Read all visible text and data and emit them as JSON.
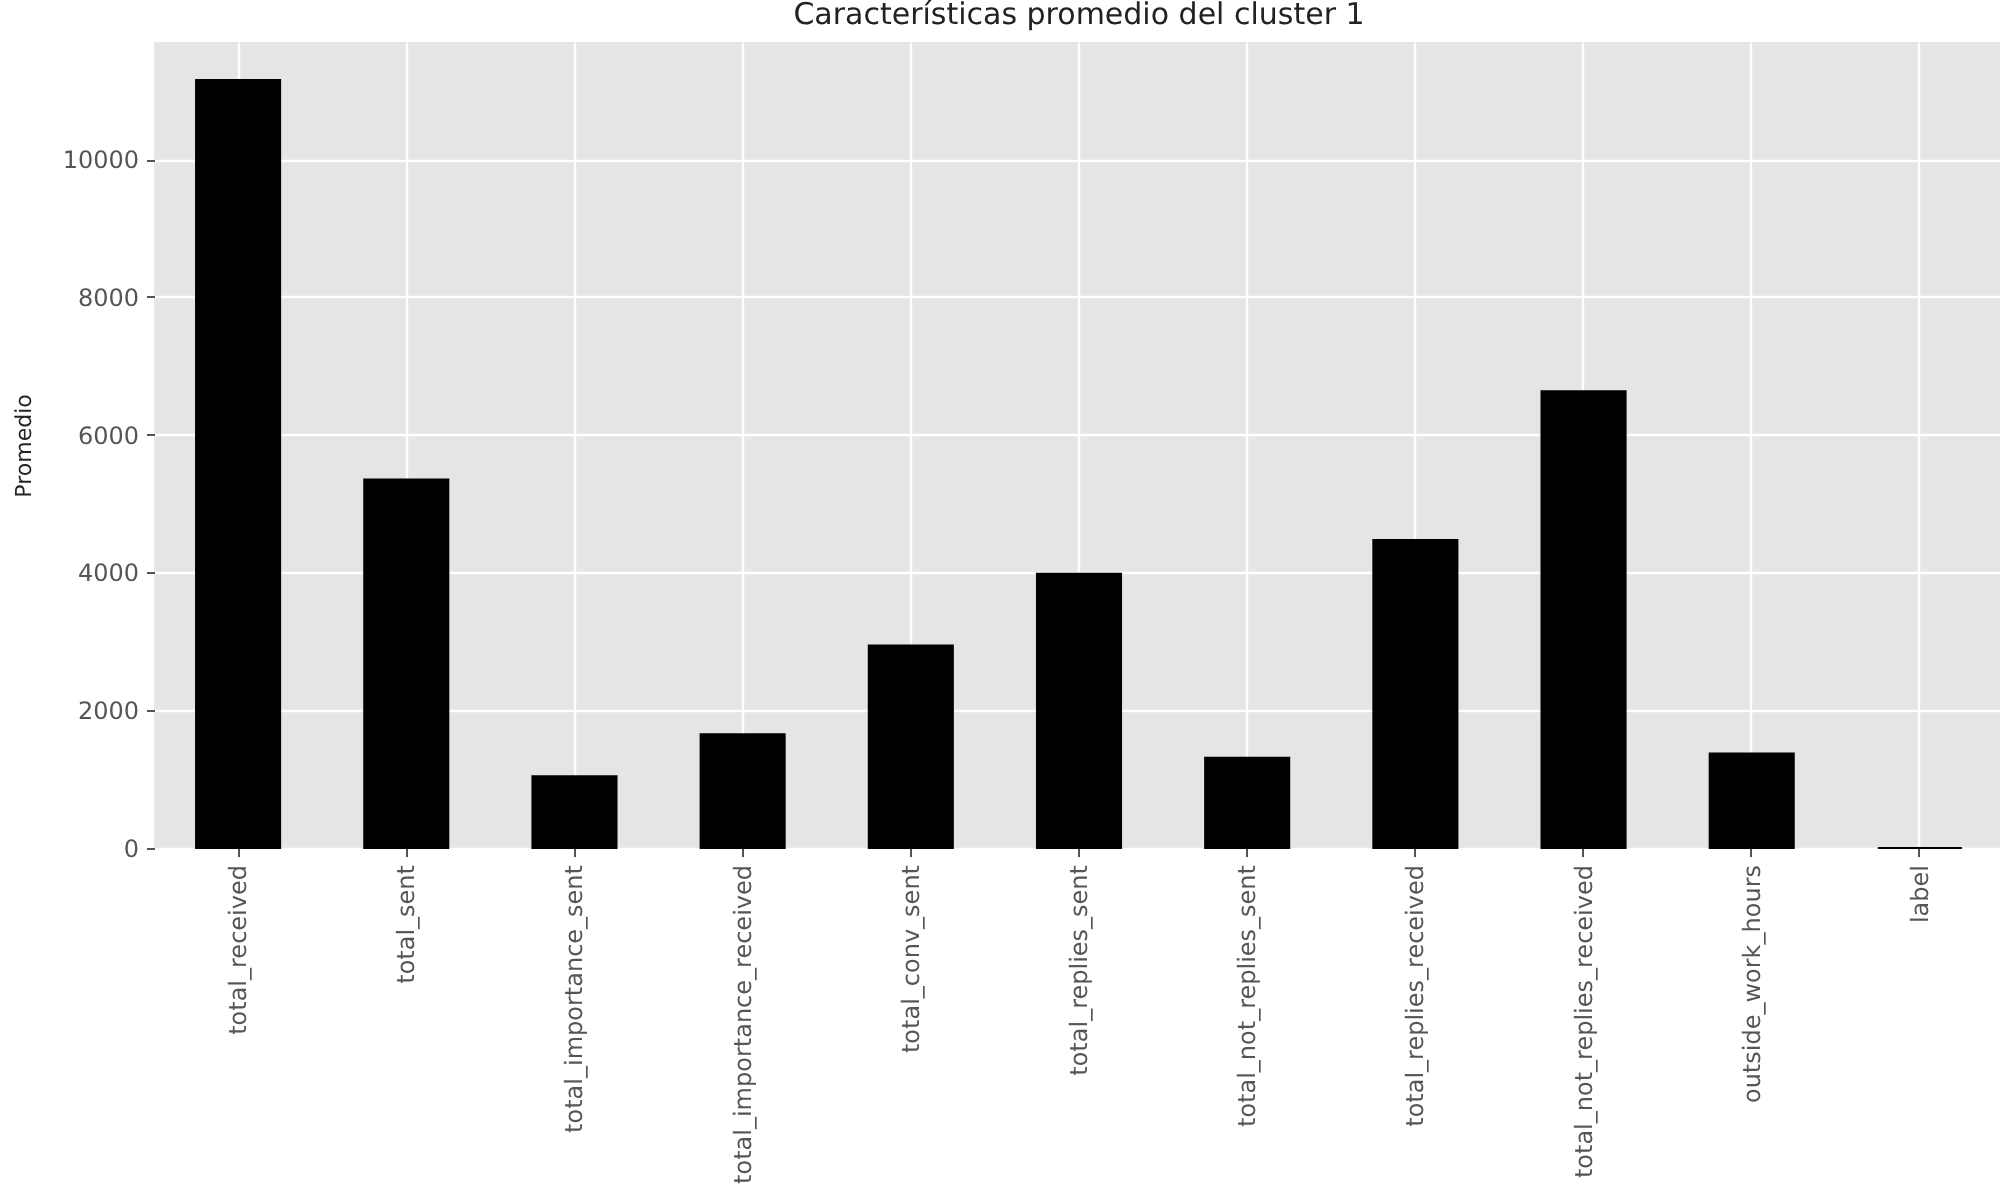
{
  "chart_data": {
    "type": "bar",
    "title": "Características promedio del cluster 1",
    "ylabel": "Promedio",
    "categories": [
      "total_received",
      "total_sent",
      "total_importance_sent",
      "total_importance_received",
      "total_conv_sent",
      "total_replies_sent",
      "total_not_replies_sent",
      "total_replies_received",
      "total_not_replies_received",
      "outside_work_hours",
      "label"
    ],
    "values": [
      11150,
      5350,
      1040,
      1650,
      2940,
      3980,
      1310,
      4470,
      6630,
      1370,
      0
    ],
    "color": "#000000",
    "ylim": [
      0,
      11700
    ],
    "yticks": [
      0,
      2000,
      4000,
      6000,
      8000,
      10000
    ],
    "grid": true
  }
}
